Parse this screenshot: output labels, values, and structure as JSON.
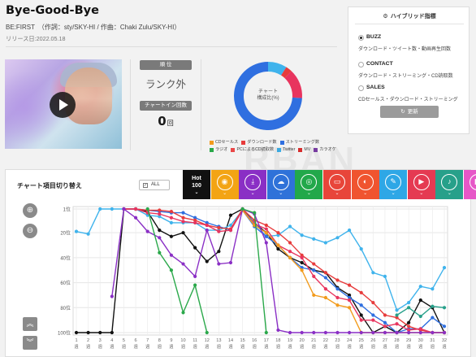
{
  "song": {
    "title": "Bye-Good-Bye",
    "credits": "BE:FIRST　（作詞：sty/SKY-HI / 作曲：Chaki Zulu/SKY-HI）",
    "release": "リリース日:2022.05.18"
  },
  "rank": {
    "label": "順 位",
    "value": "ランク外",
    "chartin_label": "チャートイン回数",
    "chartin_count": "0",
    "chartin_unit": "回"
  },
  "donut": {
    "center_line1": "チャート",
    "center_line2": "構成比(%)",
    "segments": [
      {
        "name": "ストリーミング数",
        "value": 74,
        "color": "#2f6fe0"
      },
      {
        "name": "Twitter",
        "value": 9,
        "color": "#3fb3ec"
      },
      {
        "name": "ダウンロード数",
        "value": 3,
        "color": "#e73c3c"
      },
      {
        "name": "MV",
        "value": 14,
        "color": "#e8345e"
      }
    ],
    "legend": [
      [
        {
          "label": "CDセールス",
          "color": "#f29b1d"
        },
        {
          "label": "ダウンロード数",
          "color": "#e73c3c"
        },
        {
          "label": "ストリーミング数",
          "color": "#2f6fe0"
        }
      ],
      [
        {
          "label": "ラジオ",
          "color": "#2aa84a"
        },
        {
          "label": "PCによるCD読取数",
          "color": "#e94848"
        },
        {
          "label": "Twitter",
          "color": "#3fb3ec"
        },
        {
          "label": "MV",
          "color": "#d62d2d"
        },
        {
          "label": "カラオケ",
          "color": "#7d3fa8"
        }
      ]
    ]
  },
  "hybrid": {
    "title": "ハイブリッド指標",
    "options": [
      {
        "label": "BUZZ",
        "desc": "ダウンロード・ツイート数・動画再生回数",
        "selected": true
      },
      {
        "label": "CONTACT",
        "desc": "ダウンロード・ストリーミング・CD読取数",
        "selected": false
      },
      {
        "label": "SALES",
        "desc": "CDセールス・ダウンロード・ストリーミング",
        "selected": false
      }
    ],
    "update_label": "更新"
  },
  "watermark": "RBAN",
  "panel": {
    "title": "チャート項目切り替え",
    "all_label": "ALL",
    "tiles": [
      {
        "name": "hot100",
        "label1": "Hot",
        "label2": "100",
        "color": "#111111"
      },
      {
        "name": "cd",
        "icon": "cd-icon",
        "glyph": "◉",
        "color": "#f3a414"
      },
      {
        "name": "download",
        "icon": "download-icon",
        "glyph": "⤓",
        "color": "#8a2fc5"
      },
      {
        "name": "streaming",
        "icon": "cloud-icon",
        "glyph": "☁",
        "color": "#2f72d9"
      },
      {
        "name": "radio",
        "icon": "radio-icon",
        "glyph": "◎",
        "color": "#22a84a"
      },
      {
        "name": "pc-read",
        "icon": "monitor-icon",
        "glyph": "▭",
        "color": "#e8453a"
      },
      {
        "name": "youtube-view",
        "icon": "play-circle-icon",
        "glyph": "◐",
        "color": "#f0542f"
      },
      {
        "name": "twitter",
        "icon": "twitter-icon",
        "glyph": "✎",
        "color": "#2ea7e6"
      },
      {
        "name": "youtube",
        "icon": "youtube-icon",
        "glyph": "▶",
        "color": "#e53a52"
      },
      {
        "name": "karaoke",
        "icon": "microphone-icon",
        "glyph": "♪",
        "color": "#27a08a"
      },
      {
        "name": "lookup",
        "icon": "lookup-icon",
        "glyph": "◧",
        "color": "#e657c7"
      }
    ]
  },
  "chart_data": {
    "type": "line",
    "y_axis": {
      "labels": [
        "1位",
        "20位",
        "40位",
        "60位",
        "80位",
        "100位"
      ],
      "ticks": [
        1,
        20,
        40,
        60,
        80,
        100
      ],
      "inverted": true,
      "range": [
        1,
        100
      ]
    },
    "x": [
      1,
      2,
      3,
      4,
      5,
      6,
      7,
      8,
      9,
      10,
      11,
      12,
      13,
      14,
      15,
      16,
      17,
      18,
      19,
      20,
      21,
      22,
      23,
      24,
      25,
      26,
      27,
      28,
      29,
      30,
      31,
      32
    ],
    "x_suffix": "週",
    "series": [
      {
        "color": "#111111",
        "values": [
          100,
          100,
          100,
          100,
          1,
          1,
          3,
          18,
          23,
          20,
          32,
          43,
          35,
          6,
          1,
          12,
          20,
          33,
          40,
          44,
          50,
          52,
          64,
          70,
          86,
          100,
          95,
          100,
          92,
          74,
          80,
          100
        ]
      },
      {
        "color": "#3fb3ec",
        "values": [
          19,
          21,
          1,
          1,
          1,
          1,
          6,
          7,
          12,
          12,
          12,
          18,
          18,
          14,
          2,
          12,
          23,
          22,
          15,
          22,
          25,
          28,
          24,
          18,
          33,
          52,
          55,
          82,
          76,
          63,
          65,
          48
        ]
      },
      {
        "color": "#2f6fe0",
        "values": [
          null,
          null,
          null,
          null,
          1,
          1,
          2,
          3,
          4,
          4,
          8,
          12,
          15,
          18,
          2,
          15,
          23,
          30,
          40,
          48,
          50,
          56,
          65,
          72,
          78,
          86,
          92,
          100,
          97,
          97,
          88,
          95
        ]
      },
      {
        "color": "#e73c3c",
        "values": [
          null,
          null,
          null,
          null,
          1,
          1,
          2,
          2,
          3,
          8,
          10,
          14,
          16,
          17,
          1,
          10,
          14,
          20,
          28,
          38,
          45,
          52,
          58,
          62,
          68,
          76,
          86,
          88,
          95,
          98,
          100,
          100
        ]
      },
      {
        "color": "#e8345e",
        "values": [
          null,
          null,
          null,
          null,
          1,
          1,
          4,
          5,
          8,
          11,
          12,
          14,
          19,
          18,
          2,
          13,
          17,
          30,
          35,
          40,
          55,
          65,
          72,
          74,
          90,
          90,
          95,
          93,
          98,
          97,
          100,
          100
        ]
      },
      {
        "color": "#f29b1d",
        "values": [
          null,
          null,
          null,
          null,
          null,
          null,
          null,
          null,
          null,
          null,
          null,
          null,
          null,
          null,
          2,
          14,
          20,
          30,
          40,
          50,
          70,
          72,
          78,
          80,
          100,
          100,
          100,
          100,
          100,
          100,
          100,
          100
        ]
      },
      {
        "color": "#8a2fc5",
        "values": [
          null,
          null,
          null,
          71,
          1,
          8,
          19,
          24,
          38,
          45,
          55,
          18,
          45,
          44,
          1,
          5,
          28,
          98,
          100,
          100,
          100,
          100,
          100,
          100,
          100,
          100,
          100,
          100,
          100,
          100,
          100,
          100
        ]
      },
      {
        "color": "#2aa84a",
        "values": [
          null,
          null,
          null,
          null,
          null,
          null,
          1,
          36,
          50,
          84,
          62,
          100,
          null,
          null,
          1,
          4,
          100,
          null,
          null,
          null,
          null,
          null,
          null,
          null,
          null,
          null,
          null,
          null,
          null,
          null,
          null,
          null
        ]
      },
      {
        "color": "#27a08a",
        "values": [
          null,
          null,
          null,
          null,
          null,
          null,
          null,
          null,
          null,
          null,
          null,
          null,
          null,
          null,
          null,
          null,
          null,
          null,
          null,
          null,
          null,
          null,
          null,
          null,
          null,
          null,
          null,
          86,
          80,
          87,
          79,
          80
        ]
      }
    ]
  }
}
